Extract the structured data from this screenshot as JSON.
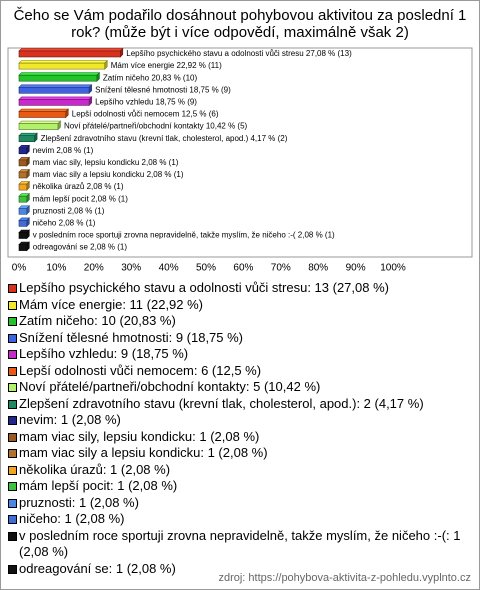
{
  "chart_data": {
    "type": "bar",
    "orientation": "horizontal",
    "title": "Čeho se Vám podařilo dosáhnout pohybovou aktivitou za poslední 1 rok? (může být i více odpovědí, maximálně však 2)",
    "values": [
      27.08,
      22.92,
      20.83,
      18.75,
      18.75,
      12.5,
      10.42,
      4.17,
      2.08,
      2.08,
      2.08,
      2.08,
      2.08,
      2.08,
      2.08,
      2.08,
      2.08
    ],
    "value_labels": [
      "Lepšího psychického stavu a odolnosti vůči stresu 27,08 % (13)",
      "Mám více energie 22,92 % (11)",
      "Zatím ničeho 20,83 % (10)",
      "Snížení tělesné hmotnosti 18,75 % (9)",
      "Lepšího vzhledu 18,75 % (9)",
      "Lepší odolnosti vůči nemocem 12,5 % (6)",
      "Noví přátelé/partneři/obchodní kontakty 10,42 % (5)",
      "Zlepšení zdravotního stavu (krevní tlak, cholesterol, apod.) 4,17 % (2)",
      "nevim 2,08 % (1)",
      "mam viac sily, lepsiu kondicku 2,08 % (1)",
      "mam viac sily a lepsiu kondicku 2,08 % (1)",
      "několika úrazů 2,08 % (1)",
      "mám lepší pocit 2,08 % (1)",
      "pruznosti 2,08 % (1)",
      "ničeho 2,08 % (1)",
      "v posledním roce sportuji zrovna nepravidelně, takže myslím, že ničeho :-( 2,08 % (1)",
      "odreagování se 2,08 % (1)"
    ],
    "legend_labels": [
      "Lepšího psychického stavu a odolnosti vůči stresu: 13 (27,08 %)",
      "Mám více energie: 11 (22,92 %)",
      "Zatím ničeho: 10 (20,83 %)",
      "Snížení tělesné hmotnosti: 9 (18,75 %)",
      "Lepšího vzhledu: 9 (18,75 %)",
      "Lepší odolnosti vůči nemocem: 6 (12,5 %)",
      "Noví přátelé/partneři/obchodní kontakty: 5 (10,42 %)",
      "Zlepšení zdravotního stavu (krevní tlak, cholesterol, apod.): 2 (4,17 %)",
      "nevim: 1 (2,08 %)",
      "mam viac sily, lepsiu kondicku: 1 (2,08 %)",
      "mam viac sily a lepsiu kondicku: 1 (2,08 %)",
      "několika úrazů: 1 (2,08 %)",
      "mám lepší pocit: 1 (2,08 %)",
      "pruznosti: 1 (2,08 %)",
      "ničeho: 1 (2,08 %)",
      "v posledním roce sportuji zrovna nepravidelně, takže myslím, že ničeho :-(: 1 (2,08 %)",
      "odreagování se: 1 (2,08 %)"
    ],
    "colors": [
      "#d8321e",
      "#f2e82a",
      "#22c22a",
      "#3f63e0",
      "#c62ac8",
      "#e85a14",
      "#b2f26a",
      "#1f8a62",
      "#22268a",
      "#9a5a20",
      "#b0722e",
      "#f0a424",
      "#3ec23e",
      "#4a86e6",
      "#3f6cd6",
      "#111111",
      "#111111"
    ],
    "xlim": [
      0,
      100
    ],
    "xticks": [
      {
        "value": 0,
        "label": "0%"
      },
      {
        "value": 10,
        "label": "10%"
      },
      {
        "value": 20,
        "label": "20%"
      },
      {
        "value": 30,
        "label": "30%"
      },
      {
        "value": 40,
        "label": "40%"
      },
      {
        "value": 50,
        "label": "50%"
      },
      {
        "value": 60,
        "label": "60%"
      },
      {
        "value": 70,
        "label": "70%"
      },
      {
        "value": 80,
        "label": "80%"
      },
      {
        "value": 90,
        "label": "90%"
      },
      {
        "value": 100,
        "label": "100%"
      }
    ],
    "grid": false,
    "source": "zdroj: https://pohybova-aktivita-z-pohledu.vyplnto.cz"
  }
}
